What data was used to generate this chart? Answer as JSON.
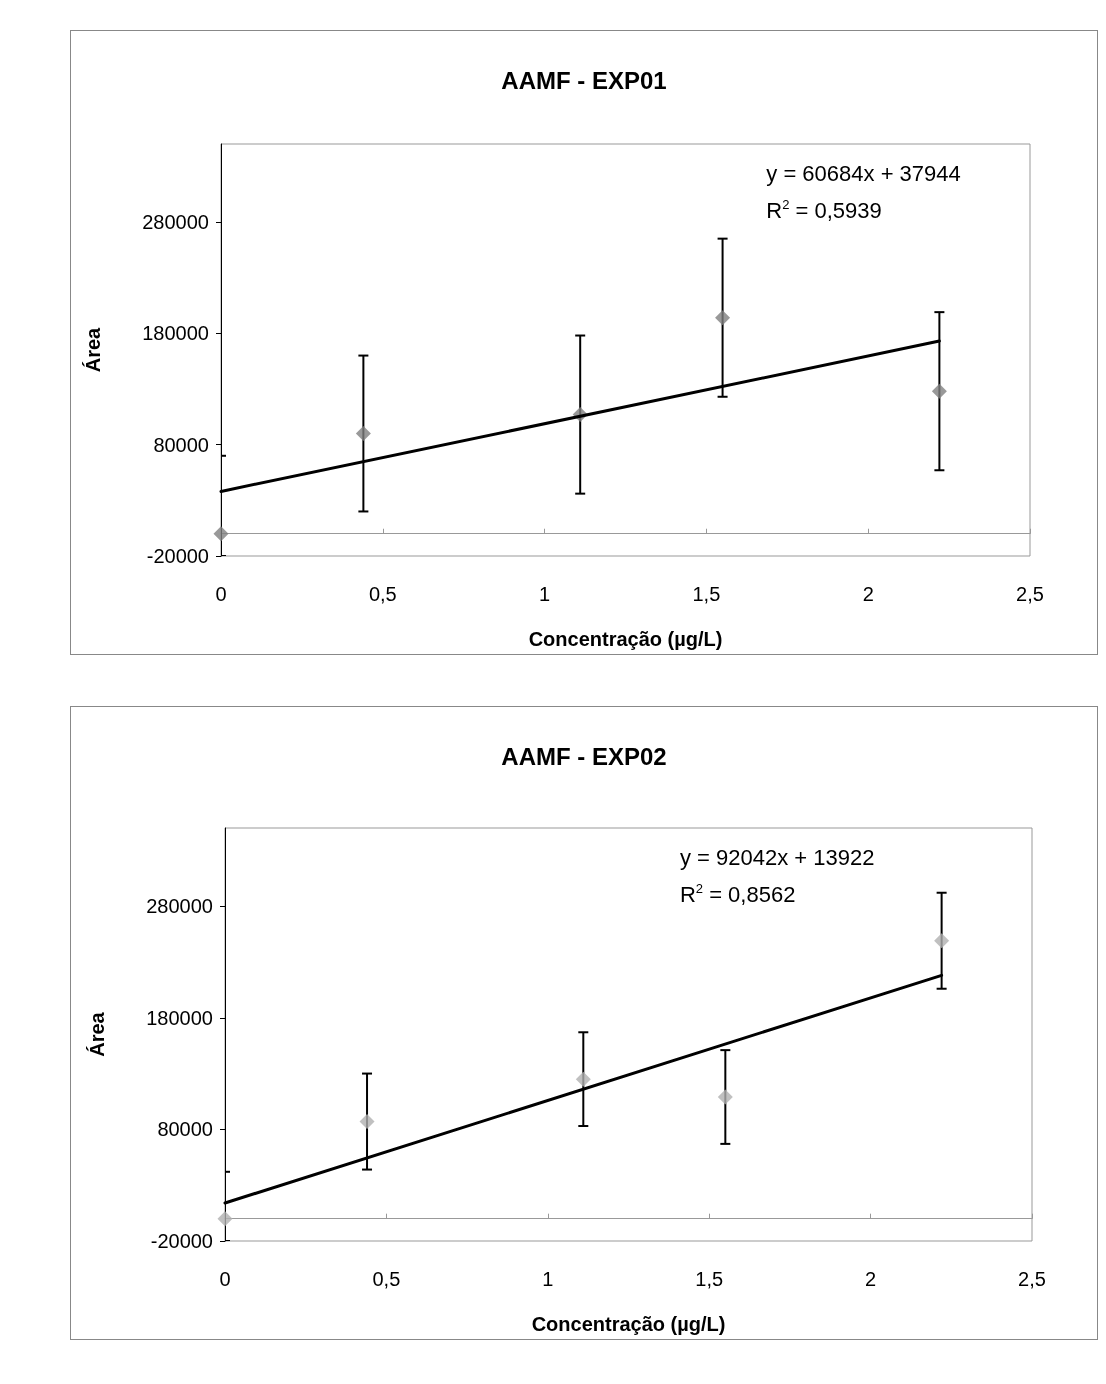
{
  "chart_data": [
    {
      "type": "scatter",
      "title": "AAMF - EXP01",
      "xlabel": "Concentração (µg/L)",
      "ylabel": "Área",
      "annotations": [
        "y = 60684x + 37944",
        "R$^{2}$ = 0,5939"
      ],
      "xlim": [
        0,
        2.5
      ],
      "xticks": [
        0,
        {
          "value": 0.5,
          "label": "0,5"
        },
        1,
        {
          "value": 1.5,
          "label": "1,5"
        },
        2,
        {
          "value": 2.5,
          "label": "2,5"
        }
      ],
      "ylim": [
        -20000,
        350000
      ],
      "yticks": [
        -20000,
        80000,
        180000,
        280000
      ],
      "grid": false,
      "series": [
        {
          "color": "#808080",
          "marker": "diamond",
          "x": [
            0,
            0.44,
            1.11,
            1.55,
            2.22
          ],
          "values": [
            0,
            90000,
            107000,
            194000,
            128000
          ],
          "errors": [
            [
              -20000,
              70000
            ],
            70000,
            71000,
            71000,
            71000
          ]
        },
        {
          "type": "line",
          "color": "#000000",
          "marker": "none",
          "x": [
            0,
            2.22
          ],
          "values": [
            38000,
            173000
          ]
        }
      ]
    },
    {
      "type": "scatter",
      "title": "AAMF - EXP02",
      "xlabel": "Concentração (µg/L)",
      "ylabel": "Área",
      "annotations": [
        "y = 92042x + 13922",
        "R$^{2}$ = 0,8562"
      ],
      "xlim": [
        0,
        2.5
      ],
      "xticks": [
        0,
        {
          "value": 0.5,
          "label": "0,5"
        },
        1,
        {
          "value": 1.5,
          "label": "1,5"
        },
        2,
        {
          "value": 2.5,
          "label": "2,5"
        }
      ],
      "ylim": [
        -20000,
        350000
      ],
      "yticks": [
        -20000,
        80000,
        180000,
        280000
      ],
      "grid": false,
      "series": [
        {
          "color": "#b0b0b0",
          "marker": "diamond",
          "x": [
            0,
            0.44,
            1.11,
            1.55,
            2.22
          ],
          "values": [
            0,
            87000,
            125000,
            109000,
            249000
          ],
          "errors": [
            [
              -20000,
              42000
            ],
            43000,
            42000,
            42000,
            43000
          ]
        },
        {
          "type": "line",
          "color": "#000000",
          "marker": "none",
          "x": [
            0,
            2.22
          ],
          "values": [
            14000,
            218000
          ]
        }
      ]
    }
  ]
}
